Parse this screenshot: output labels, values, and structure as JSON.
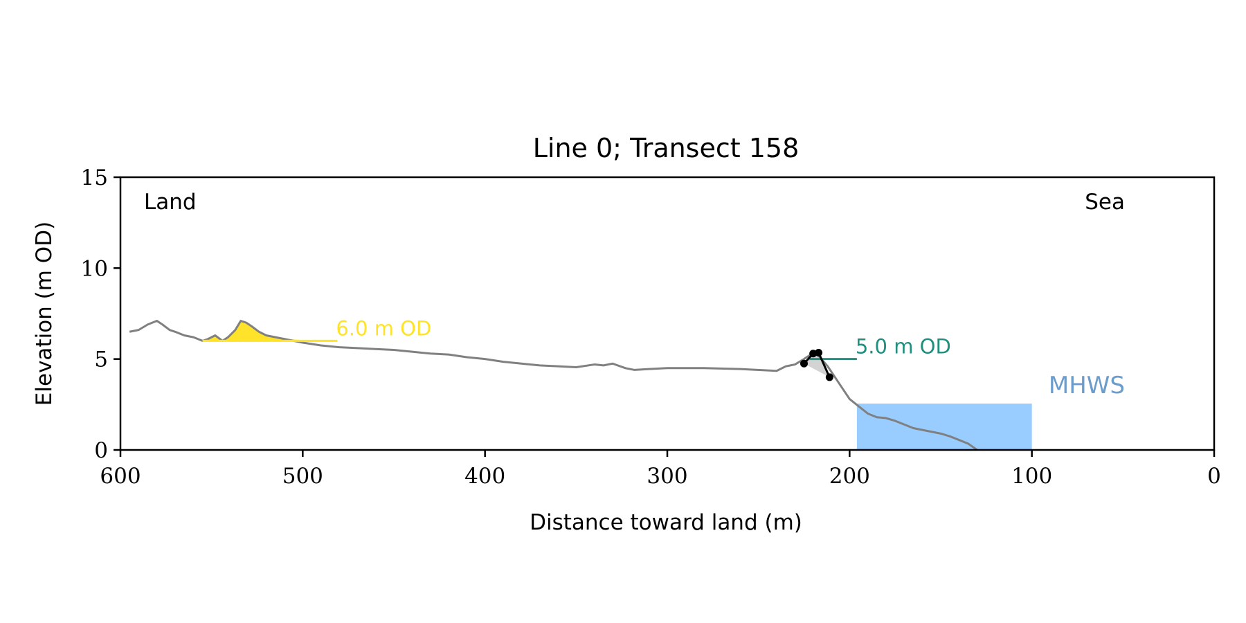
{
  "chart_data": {
    "type": "line",
    "title": "Line 0; Transect 158",
    "xlabel": "Distance toward land (m)",
    "ylabel": "Elevation (m OD)",
    "xlim": [
      600,
      0
    ],
    "ylim": [
      0,
      15
    ],
    "x_ticks": [
      600,
      500,
      400,
      300,
      200,
      100,
      0
    ],
    "y_ticks": [
      0,
      5,
      10,
      15
    ],
    "grid": false,
    "corner_labels": {
      "left": "Land",
      "right": "Sea"
    },
    "colors": {
      "profile": "#808080",
      "dune": "#FFE32A",
      "cliff_line": "#1F8F80",
      "mhws_fill": "#99CCFF",
      "mhws_text": "#6C9CCB",
      "cliff_fill": "#D3D3D3",
      "markers": "#000000"
    },
    "series": [
      {
        "x": [
          595,
          590,
          585,
          580,
          577,
          573,
          570,
          565,
          560,
          555,
          552,
          548,
          544,
          541,
          537,
          534,
          531,
          528,
          524,
          520,
          515,
          510,
          500,
          490,
          480,
          470,
          460,
          450,
          440,
          430,
          420,
          410,
          400,
          390,
          380,
          370,
          360,
          350,
          340,
          335,
          330,
          323,
          318,
          310,
          300,
          280,
          260,
          240,
          235,
          230,
          225,
          222,
          218,
          212,
          208,
          204,
          200,
          195,
          190,
          185,
          180,
          175,
          170,
          165,
          160,
          155,
          150,
          145,
          140,
          135,
          130
        ],
        "y": [
          6.5,
          6.6,
          6.9,
          7.1,
          6.9,
          6.6,
          6.5,
          6.3,
          6.2,
          6.0,
          6.1,
          6.3,
          6.0,
          6.2,
          6.6,
          7.1,
          7.0,
          6.8,
          6.5,
          6.3,
          6.2,
          6.1,
          5.9,
          5.75,
          5.65,
          5.6,
          5.55,
          5.5,
          5.4,
          5.3,
          5.25,
          5.1,
          5.0,
          4.85,
          4.75,
          4.65,
          4.6,
          4.55,
          4.7,
          4.65,
          4.75,
          4.5,
          4.4,
          4.45,
          4.5,
          4.5,
          4.45,
          4.35,
          4.6,
          4.7,
          5.0,
          5.2,
          5.3,
          4.6,
          4.0,
          3.4,
          2.8,
          2.4,
          2.0,
          1.8,
          1.75,
          1.6,
          1.4,
          1.2,
          1.1,
          1.0,
          0.9,
          0.75,
          0.55,
          0.35,
          0.0
        ]
      }
    ],
    "dune_fill": {
      "level": 6.0,
      "x": [
        555,
        552,
        548,
        544,
        541,
        537,
        534,
        531,
        528,
        524,
        520,
        515,
        510,
        500,
        490,
        481
      ],
      "y": [
        6.0,
        6.1,
        6.3,
        6.0,
        6.2,
        6.6,
        7.1,
        7.0,
        6.8,
        6.5,
        6.3,
        6.2,
        6.1,
        6.05,
        6.0,
        6.0
      ]
    },
    "dune_line": {
      "x": [
        555,
        481
      ],
      "y": 6.0
    },
    "cliff_markers": [
      {
        "x": 225,
        "y": 4.75
      },
      {
        "x": 220,
        "y": 5.3
      },
      {
        "x": 217,
        "y": 5.35
      },
      {
        "x": 211,
        "y": 4.0
      }
    ],
    "cliff_line": {
      "x": [
        222,
        196
      ],
      "y": 5.0
    },
    "mhws_fill": {
      "x_start": 196,
      "x_end": 100,
      "level": 2.55
    },
    "annotations": [
      {
        "text": "6.0 m OD",
        "x": 481,
        "y": 6.0,
        "color": "#FFE32A"
      },
      {
        "text": "5.0 m OD",
        "x": 196,
        "y": 5.0,
        "color": "#1F8F80"
      }
    ],
    "mhws_label": "MHWS"
  }
}
